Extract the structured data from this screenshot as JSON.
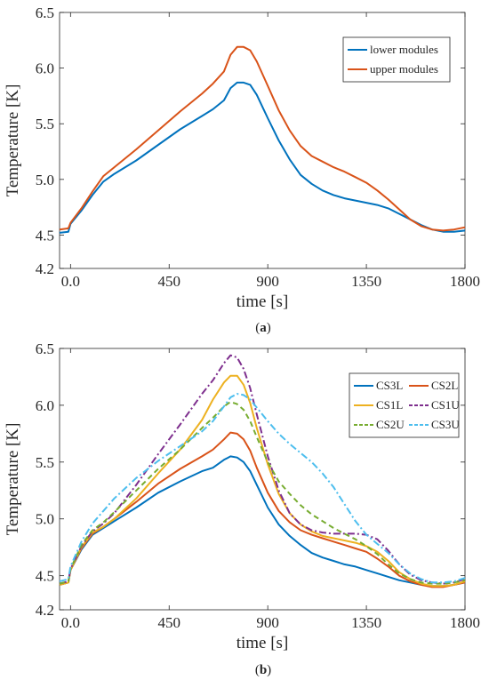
{
  "figure": {
    "panels": [
      {
        "caption_open": "(",
        "caption_letter": "a",
        "caption_close": ")"
      },
      {
        "caption_open": "(",
        "caption_letter": "b",
        "caption_close": ")"
      }
    ]
  },
  "chart_data": [
    {
      "type": "line",
      "xlabel": "time [s]",
      "ylabel": "Temperature [K]",
      "xlim": [
        -50,
        1800
      ],
      "ylim": [
        4.2,
        6.5
      ],
      "xticks": [
        0,
        450,
        900,
        1350,
        1800
      ],
      "xtick_labels": [
        "0.0",
        "450",
        "900",
        "1350",
        "1800"
      ],
      "yticks": [
        4.2,
        4.5,
        5.0,
        5.5,
        6.0,
        6.5
      ],
      "ytick_labels": [
        "4.2",
        "4.5",
        "5.0",
        "5.5",
        "6.0",
        "6.5"
      ],
      "legend_position": "top-right",
      "series": [
        {
          "name": "lower modules",
          "color": "#0072BD",
          "dash": "solid",
          "x": [
            -50,
            -10,
            0,
            50,
            100,
            150,
            200,
            300,
            400,
            500,
            600,
            650,
            700,
            730,
            760,
            790,
            820,
            850,
            900,
            950,
            1000,
            1050,
            1100,
            1150,
            1200,
            1250,
            1300,
            1350,
            1400,
            1450,
            1500,
            1550,
            1600,
            1650,
            1700,
            1750,
            1800
          ],
          "y": [
            4.52,
            4.53,
            4.6,
            4.72,
            4.86,
            4.98,
            5.05,
            5.17,
            5.31,
            5.45,
            5.57,
            5.63,
            5.71,
            5.82,
            5.87,
            5.87,
            5.85,
            5.76,
            5.55,
            5.35,
            5.18,
            5.04,
            4.96,
            4.9,
            4.86,
            4.83,
            4.81,
            4.79,
            4.77,
            4.74,
            4.69,
            4.64,
            4.59,
            4.55,
            4.53,
            4.53,
            4.54
          ]
        },
        {
          "name": "upper modules",
          "color": "#D95319",
          "dash": "solid",
          "x": [
            -50,
            -10,
            0,
            50,
            100,
            150,
            200,
            300,
            400,
            500,
            600,
            650,
            700,
            730,
            760,
            790,
            820,
            850,
            900,
            950,
            1000,
            1050,
            1100,
            1150,
            1200,
            1250,
            1300,
            1350,
            1400,
            1450,
            1500,
            1550,
            1600,
            1650,
            1700,
            1750,
            1800
          ],
          "y": [
            4.55,
            4.56,
            4.61,
            4.74,
            4.89,
            5.03,
            5.11,
            5.27,
            5.44,
            5.61,
            5.77,
            5.86,
            5.97,
            6.12,
            6.19,
            6.19,
            6.16,
            6.06,
            5.84,
            5.62,
            5.44,
            5.3,
            5.21,
            5.16,
            5.11,
            5.07,
            5.02,
            4.97,
            4.9,
            4.82,
            4.73,
            4.64,
            4.58,
            4.55,
            4.54,
            4.55,
            4.57
          ]
        }
      ]
    },
    {
      "type": "line",
      "xlabel": "time [s]",
      "ylabel": "Temperature [K]",
      "xlim": [
        -50,
        1800
      ],
      "ylim": [
        4.2,
        6.5
      ],
      "xticks": [
        0,
        450,
        900,
        1350,
        1800
      ],
      "xtick_labels": [
        "0.0",
        "450",
        "900",
        "1350",
        "1800"
      ],
      "yticks": [
        4.2,
        4.5,
        5.0,
        5.5,
        6.0,
        6.5
      ],
      "ytick_labels": [
        "4.2",
        "4.5",
        "5.0",
        "5.5",
        "6.0",
        "6.5"
      ],
      "legend_position": "top-right",
      "series": [
        {
          "name": "CS3L",
          "color": "#0072BD",
          "dash": "solid",
          "x": [
            -50,
            -10,
            0,
            50,
            100,
            150,
            200,
            300,
            400,
            500,
            600,
            650,
            700,
            730,
            760,
            790,
            820,
            850,
            900,
            950,
            1000,
            1050,
            1100,
            1150,
            1200,
            1250,
            1300,
            1350,
            1400,
            1450,
            1500,
            1550,
            1600,
            1650,
            1700,
            1750,
            1800
          ],
          "y": [
            4.42,
            4.44,
            4.55,
            4.73,
            4.86,
            4.92,
            4.98,
            5.1,
            5.23,
            5.33,
            5.42,
            5.45,
            5.52,
            5.55,
            5.54,
            5.5,
            5.42,
            5.3,
            5.1,
            4.95,
            4.85,
            4.77,
            4.7,
            4.66,
            4.63,
            4.6,
            4.58,
            4.55,
            4.52,
            4.49,
            4.46,
            4.44,
            4.42,
            4.41,
            4.41,
            4.42,
            4.44
          ]
        },
        {
          "name": "CS2L",
          "color": "#D95319",
          "dash": "solid",
          "x": [
            -50,
            -10,
            0,
            50,
            100,
            150,
            200,
            300,
            400,
            500,
            600,
            650,
            700,
            730,
            760,
            790,
            820,
            850,
            900,
            950,
            1000,
            1050,
            1100,
            1150,
            1200,
            1250,
            1300,
            1350,
            1400,
            1450,
            1500,
            1550,
            1600,
            1650,
            1700,
            1750,
            1800
          ],
          "y": [
            4.42,
            4.44,
            4.55,
            4.74,
            4.87,
            4.93,
            5.0,
            5.15,
            5.31,
            5.44,
            5.55,
            5.61,
            5.7,
            5.76,
            5.75,
            5.7,
            5.6,
            5.45,
            5.23,
            5.07,
            4.97,
            4.9,
            4.86,
            4.83,
            4.8,
            4.77,
            4.74,
            4.71,
            4.65,
            4.58,
            4.5,
            4.45,
            4.42,
            4.4,
            4.4,
            4.42,
            4.44
          ]
        },
        {
          "name": "CS1L",
          "color": "#EDB120",
          "dash": "solid",
          "x": [
            -50,
            -10,
            0,
            50,
            100,
            150,
            200,
            300,
            400,
            500,
            600,
            650,
            700,
            730,
            760,
            790,
            820,
            850,
            900,
            950,
            1000,
            1050,
            1100,
            1150,
            1200,
            1250,
            1300,
            1350,
            1400,
            1450,
            1500,
            1550,
            1600,
            1650,
            1700,
            1750,
            1800
          ],
          "y": [
            4.42,
            4.44,
            4.55,
            4.75,
            4.88,
            4.93,
            5.0,
            5.18,
            5.4,
            5.61,
            5.87,
            6.05,
            6.2,
            6.26,
            6.26,
            6.18,
            6.02,
            5.8,
            5.48,
            5.22,
            5.05,
            4.95,
            4.89,
            4.85,
            4.83,
            4.81,
            4.79,
            4.76,
            4.71,
            4.63,
            4.53,
            4.47,
            4.43,
            4.41,
            4.41,
            4.42,
            4.45
          ]
        },
        {
          "name": "CS1U",
          "color": "#7E2F8E",
          "dash": "dashdot",
          "x": [
            -50,
            -10,
            0,
            50,
            100,
            150,
            200,
            300,
            400,
            500,
            600,
            650,
            700,
            730,
            760,
            790,
            820,
            850,
            900,
            950,
            1000,
            1050,
            1100,
            1150,
            1200,
            1250,
            1300,
            1350,
            1400,
            1450,
            1500,
            1550,
            1600,
            1650,
            1700,
            1750,
            1800
          ],
          "y": [
            4.43,
            4.45,
            4.56,
            4.76,
            4.89,
            4.96,
            5.05,
            5.3,
            5.57,
            5.83,
            6.1,
            6.22,
            6.37,
            6.44,
            6.42,
            6.32,
            6.15,
            5.92,
            5.55,
            5.25,
            5.05,
            4.95,
            4.9,
            4.88,
            4.87,
            4.87,
            4.87,
            4.86,
            4.82,
            4.72,
            4.6,
            4.51,
            4.46,
            4.44,
            4.43,
            4.44,
            4.47
          ]
        },
        {
          "name": "CS2U",
          "color": "#77AC30",
          "dash": "dash",
          "x": [
            -50,
            -10,
            0,
            50,
            100,
            150,
            200,
            300,
            400,
            500,
            600,
            650,
            700,
            730,
            760,
            790,
            820,
            850,
            900,
            950,
            1000,
            1050,
            1100,
            1150,
            1200,
            1250,
            1300,
            1350,
            1400,
            1450,
            1500,
            1550,
            1600,
            1650,
            1700,
            1750,
            1800
          ],
          "y": [
            4.43,
            4.45,
            4.56,
            4.77,
            4.9,
            4.97,
            5.06,
            5.25,
            5.44,
            5.61,
            5.8,
            5.89,
            5.99,
            6.03,
            6.01,
            5.96,
            5.86,
            5.72,
            5.5,
            5.33,
            5.22,
            5.12,
            5.04,
            4.98,
            4.92,
            4.87,
            4.82,
            4.76,
            4.69,
            4.6,
            4.52,
            4.47,
            4.44,
            4.43,
            4.43,
            4.44,
            4.46
          ]
        },
        {
          "name": "CS3U",
          "color": "#4DBEEE",
          "dash": "dashdot",
          "x": [
            -50,
            -10,
            0,
            50,
            100,
            150,
            200,
            300,
            400,
            500,
            600,
            650,
            700,
            730,
            760,
            790,
            820,
            850,
            900,
            950,
            1000,
            1050,
            1100,
            1150,
            1200,
            1250,
            1300,
            1350,
            1400,
            1450,
            1500,
            1550,
            1600,
            1650,
            1700,
            1750,
            1800
          ],
          "y": [
            4.45,
            4.47,
            4.58,
            4.8,
            4.96,
            5.07,
            5.18,
            5.36,
            5.51,
            5.64,
            5.77,
            5.86,
            5.99,
            6.07,
            6.1,
            6.09,
            6.05,
            5.98,
            5.86,
            5.75,
            5.66,
            5.58,
            5.5,
            5.4,
            5.28,
            5.13,
            4.98,
            4.86,
            4.78,
            4.7,
            4.6,
            4.52,
            4.47,
            4.44,
            4.44,
            4.45,
            4.48
          ]
        }
      ]
    }
  ]
}
